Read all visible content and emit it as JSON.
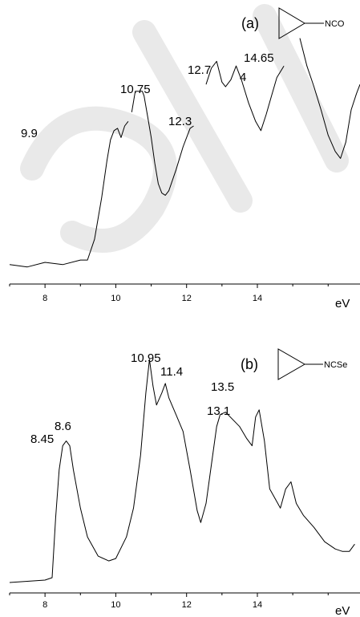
{
  "chart_data": [
    {
      "type": "line",
      "panel_label": "(a)",
      "substituent": "NCO",
      "xlabel": "eV",
      "xlim": [
        7.0,
        16.9
      ],
      "x_ticks": [
        8,
        10,
        12,
        14
      ],
      "peak_labels": [
        {
          "text": "9.9",
          "x": 9.9
        },
        {
          "text": "10.75",
          "x": 10.75
        },
        {
          "text": "12.3",
          "x": 12.3
        },
        {
          "text": "12.7",
          "x": 12.7
        },
        {
          "text": "4",
          "x": 13.4
        },
        {
          "text": "14.65",
          "x": 14.65
        }
      ],
      "series": [
        {
          "values": [
            [
              7.0,
              0.07
            ],
            [
              7.5,
              0.06
            ],
            [
              8.0,
              0.08
            ],
            [
              8.5,
              0.07
            ],
            [
              9.0,
              0.09
            ],
            [
              9.2,
              0.09
            ],
            [
              9.4,
              0.18
            ],
            [
              9.6,
              0.36
            ],
            [
              9.75,
              0.52
            ],
            [
              9.85,
              0.61
            ],
            [
              9.95,
              0.65
            ],
            [
              10.05,
              0.66
            ],
            [
              10.15,
              0.62
            ],
            [
              10.25,
              0.67
            ],
            [
              10.35,
              0.69
            ]
          ]
        },
        {
          "values": [
            [
              10.45,
              0.73
            ],
            [
              10.55,
              0.82
            ],
            [
              10.65,
              0.82
            ],
            [
              10.75,
              0.82
            ],
            [
              10.8,
              0.8
            ],
            [
              10.9,
              0.71
            ],
            [
              11.0,
              0.62
            ],
            [
              11.1,
              0.51
            ],
            [
              11.2,
              0.42
            ],
            [
              11.3,
              0.38
            ],
            [
              11.4,
              0.37
            ],
            [
              11.5,
              0.39
            ],
            [
              11.7,
              0.48
            ],
            [
              11.9,
              0.58
            ],
            [
              12.1,
              0.66
            ],
            [
              12.2,
              0.67
            ]
          ]
        },
        {
          "values": [
            [
              12.55,
              0.85
            ],
            [
              12.7,
              0.92
            ],
            [
              12.85,
              0.95
            ],
            [
              13.0,
              0.86
            ],
            [
              13.1,
              0.84
            ],
            [
              13.25,
              0.87
            ],
            [
              13.4,
              0.93
            ],
            [
              13.55,
              0.87
            ],
            [
              13.75,
              0.77
            ],
            [
              13.95,
              0.69
            ],
            [
              14.1,
              0.65
            ],
            [
              14.25,
              0.72
            ],
            [
              14.4,
              0.8
            ],
            [
              14.55,
              0.88
            ],
            [
              14.75,
              0.93
            ]
          ]
        },
        {
          "values": [
            [
              15.2,
              1.05
            ],
            [
              15.4,
              0.93
            ],
            [
              15.6,
              0.84
            ],
            [
              15.8,
              0.74
            ],
            [
              16.0,
              0.63
            ],
            [
              16.2,
              0.56
            ],
            [
              16.35,
              0.53
            ],
            [
              16.5,
              0.6
            ],
            [
              16.65,
              0.74
            ],
            [
              16.8,
              0.81
            ],
            [
              16.9,
              0.85
            ]
          ]
        }
      ]
    },
    {
      "type": "line",
      "panel_label": "(b)",
      "substituent": "NCSe",
      "xlabel": "eV",
      "xlim": [
        7.0,
        16.9
      ],
      "x_ticks": [
        8,
        10,
        12,
        14
      ],
      "peak_labels": [
        {
          "text": "8.45",
          "x": 8.45
        },
        {
          "text": "8.6",
          "x": 8.6
        },
        {
          "text": "10.95",
          "x": 10.95
        },
        {
          "text": "11.4",
          "x": 11.4
        },
        {
          "text": "13.1",
          "x": 13.1
        },
        {
          "text": "13.5",
          "x": 13.5
        }
      ],
      "series": [
        {
          "values": [
            [
              7.0,
              0.03
            ],
            [
              8.0,
              0.04
            ],
            [
              8.2,
              0.05
            ],
            [
              8.3,
              0.3
            ],
            [
              8.4,
              0.5
            ],
            [
              8.5,
              0.6
            ],
            [
              8.6,
              0.62
            ],
            [
              8.7,
              0.6
            ],
            [
              8.8,
              0.5
            ],
            [
              9.0,
              0.34
            ],
            [
              9.2,
              0.22
            ],
            [
              9.5,
              0.14
            ],
            [
              9.8,
              0.12
            ],
            [
              10.0,
              0.13
            ],
            [
              10.3,
              0.22
            ],
            [
              10.5,
              0.34
            ],
            [
              10.7,
              0.56
            ],
            [
              10.85,
              0.82
            ],
            [
              10.95,
              0.96
            ],
            [
              11.05,
              0.85
            ],
            [
              11.15,
              0.77
            ],
            [
              11.3,
              0.82
            ],
            [
              11.4,
              0.86
            ],
            [
              11.5,
              0.8
            ],
            [
              11.7,
              0.73
            ],
            [
              11.9,
              0.66
            ],
            [
              12.1,
              0.5
            ],
            [
              12.3,
              0.33
            ],
            [
              12.4,
              0.28
            ],
            [
              12.55,
              0.36
            ],
            [
              12.7,
              0.52
            ],
            [
              12.85,
              0.68
            ],
            [
              12.95,
              0.73
            ],
            [
              13.1,
              0.74
            ],
            [
              13.3,
              0.71
            ],
            [
              13.5,
              0.68
            ],
            [
              13.7,
              0.63
            ],
            [
              13.85,
              0.6
            ],
            [
              13.95,
              0.72
            ],
            [
              14.05,
              0.75
            ],
            [
              14.2,
              0.62
            ],
            [
              14.35,
              0.42
            ],
            [
              14.5,
              0.38
            ],
            [
              14.65,
              0.34
            ],
            [
              14.8,
              0.42
            ],
            [
              14.95,
              0.45
            ],
            [
              15.1,
              0.36
            ],
            [
              15.3,
              0.31
            ],
            [
              15.6,
              0.26
            ],
            [
              15.9,
              0.2
            ],
            [
              16.2,
              0.17
            ],
            [
              16.4,
              0.16
            ],
            [
              16.6,
              0.16
            ],
            [
              16.75,
              0.19
            ]
          ]
        }
      ]
    }
  ]
}
